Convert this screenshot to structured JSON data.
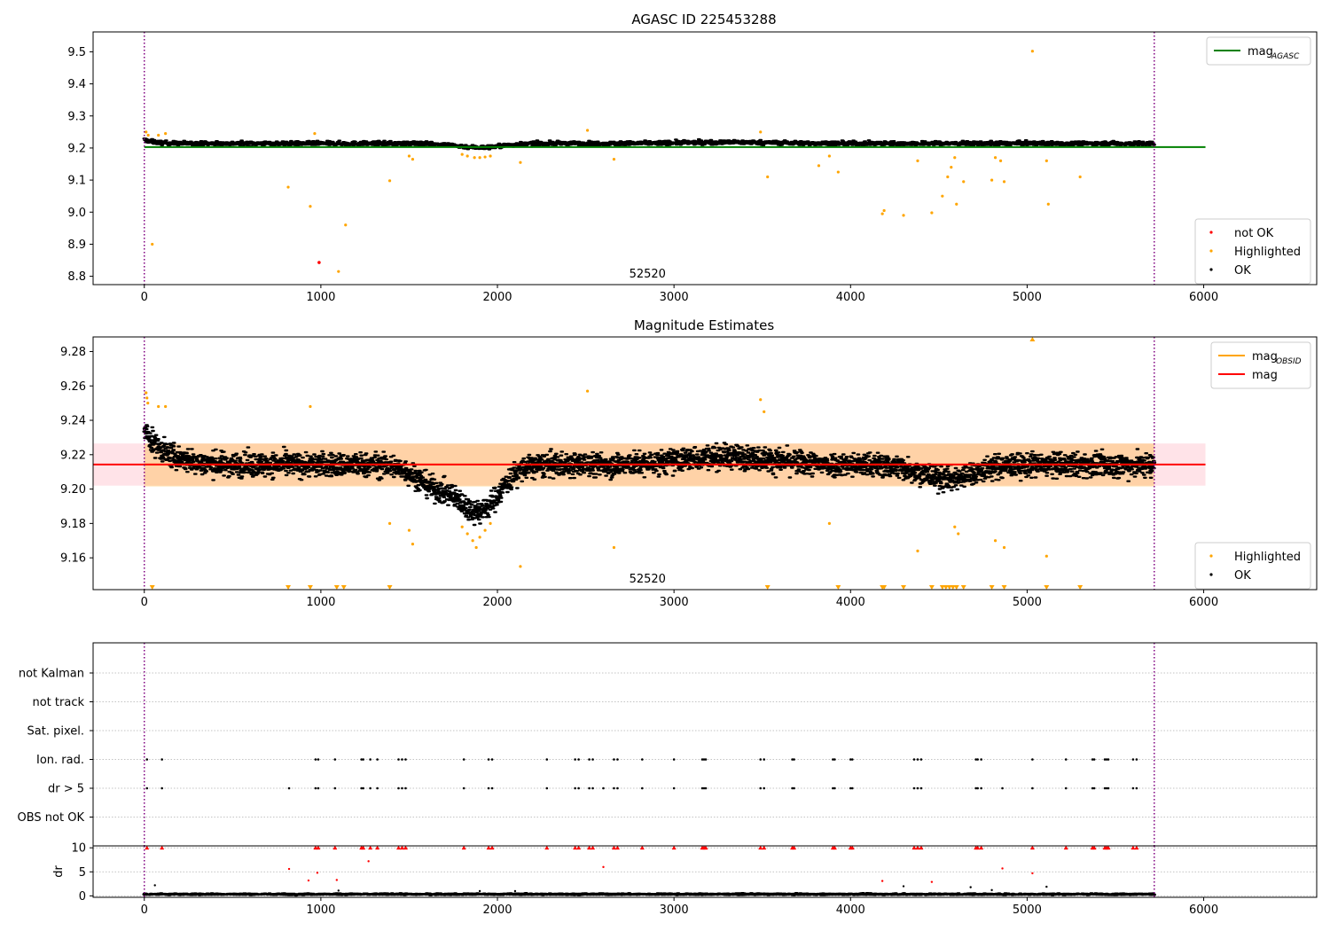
{
  "chart_data": [
    {
      "type": "scatter",
      "title": "AGASC ID 225453288",
      "xlim": [
        -290,
        6640
      ],
      "ylim": [
        8.774,
        9.562
      ],
      "x_ticks": [
        0,
        1000,
        2000,
        3000,
        4000,
        5000,
        6000
      ],
      "y_ticks": [
        8.8,
        8.9,
        9.0,
        9.1,
        9.2,
        9.3,
        9.4,
        9.5
      ],
      "grid": false,
      "obs_boundaries": [
        0,
        5720
      ],
      "obs_label": {
        "text": "52520",
        "x": 2850,
        "y": 8.77
      },
      "reference_lines": [
        {
          "name": "mag",
          "subscript": "AGASC",
          "y": 9.203,
          "x_range": [
            0,
            6010
          ],
          "color": "#008000"
        }
      ],
      "legend_top": {
        "placement": "top-right",
        "entries": [
          {
            "name": "mag",
            "subscript": "AGASC",
            "kind": "line",
            "color": "#008000"
          }
        ]
      },
      "legend_bottom": {
        "placement": "bottom-right",
        "entries": [
          {
            "name": "not OK",
            "kind": "marker",
            "color": "#ff0000"
          },
          {
            "name": "Highlighted",
            "kind": "marker",
            "color": "#ffa500"
          },
          {
            "name": "OK",
            "kind": "marker",
            "color": "#000000"
          }
        ]
      },
      "ok_band": {
        "x_range": [
          0,
          5720
        ],
        "center": 9.214,
        "spread": 0.009,
        "color": "#000000"
      },
      "highlighted_points": [
        [
          10,
          9.25
        ],
        [
          22,
          9.24
        ],
        [
          45,
          8.9
        ],
        [
          80,
          9.24
        ],
        [
          120,
          9.245
        ],
        [
          815,
          9.078
        ],
        [
          940,
          9.018
        ],
        [
          965,
          9.245
        ],
        [
          1100,
          8.815
        ],
        [
          1140,
          8.96
        ],
        [
          1390,
          9.098
        ],
        [
          1500,
          9.175
        ],
        [
          1520,
          9.165
        ],
        [
          1800,
          9.18
        ],
        [
          1830,
          9.175
        ],
        [
          1870,
          9.17
        ],
        [
          1900,
          9.17
        ],
        [
          1930,
          9.172
        ],
        [
          1960,
          9.175
        ],
        [
          2130,
          9.155
        ],
        [
          2510,
          9.255
        ],
        [
          2660,
          9.165
        ],
        [
          3490,
          9.25
        ],
        [
          3530,
          9.11
        ],
        [
          3820,
          9.145
        ],
        [
          3880,
          9.175
        ],
        [
          3930,
          9.125
        ],
        [
          4180,
          8.995
        ],
        [
          4190,
          9.005
        ],
        [
          4300,
          8.99
        ],
        [
          4380,
          9.16
        ],
        [
          4460,
          8.998
        ],
        [
          4520,
          9.05
        ],
        [
          4550,
          9.11
        ],
        [
          4570,
          9.14
        ],
        [
          4590,
          9.17
        ],
        [
          4600,
          9.025
        ],
        [
          4640,
          9.095
        ],
        [
          4800,
          9.1
        ],
        [
          4820,
          9.17
        ],
        [
          4850,
          9.16
        ],
        [
          4870,
          9.095
        ],
        [
          5030,
          9.502
        ],
        [
          5110,
          9.16
        ],
        [
          5120,
          9.025
        ],
        [
          5300,
          9.11
        ]
      ],
      "not_ok_points": [
        [
          990,
          8.843
        ]
      ]
    },
    {
      "type": "scatter",
      "title": "Magnitude Estimates",
      "xlim": [
        -290,
        6640
      ],
      "ylim": [
        9.1415,
        9.2885
      ],
      "x_ticks": [
        0,
        1000,
        2000,
        3000,
        4000,
        5000,
        6000
      ],
      "y_ticks": [
        9.16,
        9.18,
        9.2,
        9.22,
        9.24,
        9.26,
        9.28
      ],
      "grid": false,
      "obs_boundaries": [
        0,
        5720
      ],
      "obs_label": {
        "text": "52520",
        "x": 2850,
        "y": 9.1415
      },
      "reference_lines": [
        {
          "name": "mag",
          "subscript": "OBSID",
          "y": 9.2143,
          "x_range": [
            0,
            5720
          ],
          "color": "#ffa500"
        },
        {
          "name": "mag",
          "y": 9.2143,
          "x_range": [
            -290,
            6010
          ],
          "color": "#ff0000"
        }
      ],
      "bands": [
        {
          "x_range": [
            -290,
            6010
          ],
          "y_range": [
            9.202,
            9.2265
          ],
          "color": "#ffc0cb"
        },
        {
          "x_range": [
            0,
            5720
          ],
          "y_range": [
            9.2015,
            9.2265
          ],
          "color": "#ffa500"
        }
      ],
      "legend_top": {
        "placement": "top-right",
        "entries": [
          {
            "name": "mag",
            "subscript": "OBSID",
            "kind": "line",
            "color": "#ffa500"
          },
          {
            "name": "mag",
            "kind": "line",
            "color": "#ff0000"
          }
        ]
      },
      "legend_bottom": {
        "placement": "bottom-right",
        "entries": [
          {
            "name": "Highlighted",
            "kind": "marker",
            "color": "#ffa500"
          },
          {
            "name": "OK",
            "kind": "marker",
            "color": "#000000"
          }
        ]
      },
      "ok_band": {
        "x_range": [
          0,
          5720
        ],
        "center": 9.214,
        "spread": 0.009,
        "color": "#000000"
      },
      "highlighted_points": [
        [
          10,
          9.256
        ],
        [
          15,
          9.253
        ],
        [
          20,
          9.25
        ],
        [
          80,
          9.248
        ],
        [
          120,
          9.248
        ],
        [
          940,
          9.248
        ],
        [
          1390,
          9.18
        ],
        [
          1500,
          9.176
        ],
        [
          1520,
          9.168
        ],
        [
          1800,
          9.178
        ],
        [
          1830,
          9.174
        ],
        [
          1860,
          9.17
        ],
        [
          1880,
          9.166
        ],
        [
          1900,
          9.172
        ],
        [
          1930,
          9.176
        ],
        [
          1960,
          9.18
        ],
        [
          2130,
          9.155
        ],
        [
          2510,
          9.257
        ],
        [
          2660,
          9.166
        ],
        [
          3490,
          9.252
        ],
        [
          3510,
          9.245
        ],
        [
          3880,
          9.18
        ],
        [
          4380,
          9.164
        ],
        [
          4590,
          9.178
        ],
        [
          4610,
          9.174
        ],
        [
          4820,
          9.17
        ],
        [
          4870,
          9.166
        ],
        [
          5110,
          9.161
        ]
      ],
      "clipped_low": [
        45,
        815,
        940,
        1090,
        1130,
        1390,
        3530,
        3930,
        4180,
        4190,
        4300,
        4460,
        4520,
        4540,
        4560,
        4580,
        4600,
        4640,
        4800,
        4870,
        5110,
        5300
      ],
      "clipped_high": [
        5030
      ]
    },
    {
      "type": "scatter",
      "xlim": [
        -290,
        6640
      ],
      "ylim": [
        0,
        6
      ],
      "y_ticks": [
        "not Kalman",
        "not track",
        "Sat. pixel.",
        "Ion. rad.",
        "dr > 5",
        "OBS not OK"
      ],
      "grid": true,
      "obs_boundaries": [
        0,
        5720
      ],
      "flags": {
        "Ion. rad.": [
          15,
          100,
          970,
          985,
          1080,
          1230,
          1240,
          1280,
          1320,
          1440,
          1460,
          1480,
          1810,
          1950,
          1970,
          2280,
          2440,
          2460,
          2520,
          2540,
          2660,
          2680,
          2820,
          3000,
          3160,
          3170,
          3180,
          3490,
          3510,
          3670,
          3680,
          3900,
          3910,
          4000,
          4010,
          4360,
          4380,
          4400,
          4710,
          4720,
          4740,
          5030,
          5220,
          5370,
          5380,
          5440,
          5450,
          5460,
          5600,
          5620
        ],
        "dr > 5": [
          15,
          100,
          820,
          970,
          985,
          1080,
          1230,
          1240,
          1280,
          1320,
          1440,
          1460,
          1480,
          1810,
          1950,
          1970,
          2280,
          2440,
          2460,
          2520,
          2540,
          2600,
          2660,
          2680,
          2820,
          3000,
          3160,
          3170,
          3180,
          3490,
          3510,
          3670,
          3680,
          3900,
          3910,
          4000,
          4010,
          4360,
          4380,
          4400,
          4710,
          4720,
          4740,
          4860,
          5030,
          5220,
          5370,
          5380,
          5440,
          5450,
          5460,
          5600,
          5620
        ]
      }
    },
    {
      "type": "scatter",
      "xlim": [
        -290,
        6640
      ],
      "ylim": [
        -0.3,
        10.4
      ],
      "x_ticks": [
        0,
        1000,
        2000,
        3000,
        4000,
        5000,
        6000
      ],
      "y_ticks": [
        0,
        5,
        10
      ],
      "ylabel": "dr",
      "grid": true,
      "obs_boundaries": [
        0,
        5720
      ],
      "ok_band": {
        "x_range": [
          0,
          5720
        ],
        "center": 0.35,
        "spread": 0.22,
        "color": "#000000"
      },
      "capped_points": [
        15,
        100,
        970,
        985,
        1080,
        1230,
        1240,
        1280,
        1320,
        1440,
        1460,
        1480,
        1810,
        1950,
        1970,
        2280,
        2440,
        2460,
        2520,
        2540,
        2660,
        2680,
        2820,
        3000,
        3160,
        3170,
        3180,
        3490,
        3510,
        3670,
        3680,
        3900,
        3910,
        4000,
        4010,
        4360,
        4380,
        4400,
        4710,
        4720,
        4740,
        5030,
        5220,
        5370,
        5380,
        5440,
        5450,
        5460,
        5600,
        5620
      ],
      "red_points": [
        [
          820,
          5.6
        ],
        [
          930,
          3.2
        ],
        [
          980,
          4.8
        ],
        [
          1090,
          3.3
        ],
        [
          1270,
          7.2
        ],
        [
          2600,
          6.0
        ],
        [
          4180,
          3.1
        ],
        [
          4460,
          2.9
        ],
        [
          4860,
          5.7
        ],
        [
          5030,
          4.7
        ]
      ],
      "black_points": [
        [
          60,
          2.2
        ],
        [
          1100,
          1.1
        ],
        [
          1900,
          1.0
        ],
        [
          2100,
          1.0
        ],
        [
          4300,
          2.0
        ],
        [
          4680,
          1.8
        ],
        [
          4800,
          1.2
        ],
        [
          5110,
          1.9
        ]
      ]
    }
  ]
}
